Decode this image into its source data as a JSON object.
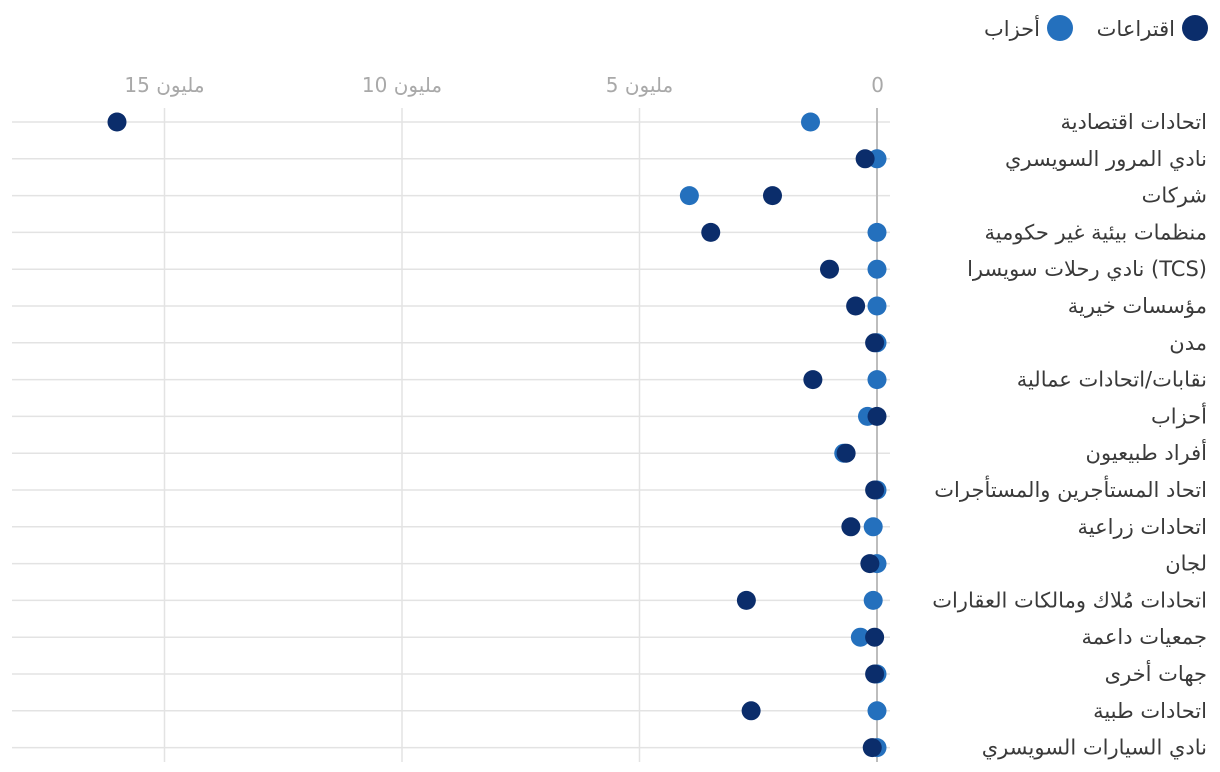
{
  "colors": {
    "referendums": "#0b2d6b",
    "parties": "#2470bd",
    "grid": "#e3e3e3",
    "zero_line": "#bdbdbd",
    "label_text": "#3a3a3a",
    "tick_text": "#a9a9a9"
  },
  "chart_data": {
    "type": "scatter",
    "orientation": "horizontal dot plot, x axis reversed (0 at right)",
    "x_ticks": [
      {
        "value": 0,
        "label": "0"
      },
      {
        "value": 5000000,
        "label": "5 مليون"
      },
      {
        "value": 10000000,
        "label": "10 مليون"
      },
      {
        "value": 15000000,
        "label": "15 مليون"
      }
    ],
    "xlim": [
      0,
      18000000
    ],
    "grid": true,
    "legend_position": "top-right",
    "categories": [
      "اتحادات اقتصادية",
      "نادي المرور السويسري",
      "شركات",
      "منظمات بيئية غير حكومية",
      "نادي رحلات سويسرا (TCS)",
      "مؤسسات خيرية",
      "مدن",
      "نقابات/اتحادات عمالية",
      "أحزاب",
      "أفراد طبيعيون",
      "اتحاد المستأجرين والمستأجرات",
      "اتحادات زراعية",
      "لجان",
      "اتحادات مُلاك ومالكات العقارات",
      "جمعيات داعمة",
      "جهات أخرى",
      "اتحادات طبية",
      "نادي السيارات السويسري"
    ],
    "series": [
      {
        "name": "اقتراعات",
        "color": "#0b2d6b",
        "values": [
          16000000,
          250000,
          2200000,
          3500000,
          1000000,
          450000,
          50000,
          1350000,
          0,
          650000,
          50000,
          550000,
          150000,
          2750000,
          50000,
          50000,
          2650000,
          100000
        ]
      },
      {
        "name": "أحزاب",
        "color": "#2470bd",
        "values": [
          1400000,
          0,
          3950000,
          0,
          0,
          0,
          0,
          0,
          200000,
          700000,
          0,
          80000,
          0,
          80000,
          350000,
          0,
          0,
          0
        ]
      }
    ]
  }
}
